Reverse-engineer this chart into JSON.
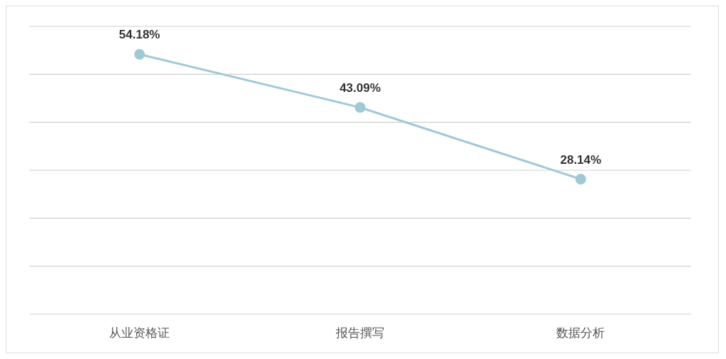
{
  "chart_data": {
    "type": "line",
    "categories": [
      "从业资格证",
      "报告撰写",
      "数据分析"
    ],
    "series": [
      {
        "color": "#9ecad6",
        "values": [
          54.18,
          43.09,
          28.14
        ],
        "value_labels": [
          "54.18%",
          "43.09%",
          "28.14%"
        ]
      }
    ],
    "ylim": [
      0,
      60
    ],
    "yticks": [
      {
        "value": 0,
        "label": null
      },
      {
        "value": 10,
        "label": null
      },
      {
        "value": 20,
        "label": null
      },
      {
        "value": 30,
        "label": null
      },
      {
        "value": 40,
        "label": null
      },
      {
        "value": 50,
        "label": null
      },
      {
        "value": 60,
        "label": null
      }
    ],
    "tick_labels": "x",
    "grid": "y",
    "marker": "circle",
    "line_style": "solid"
  }
}
